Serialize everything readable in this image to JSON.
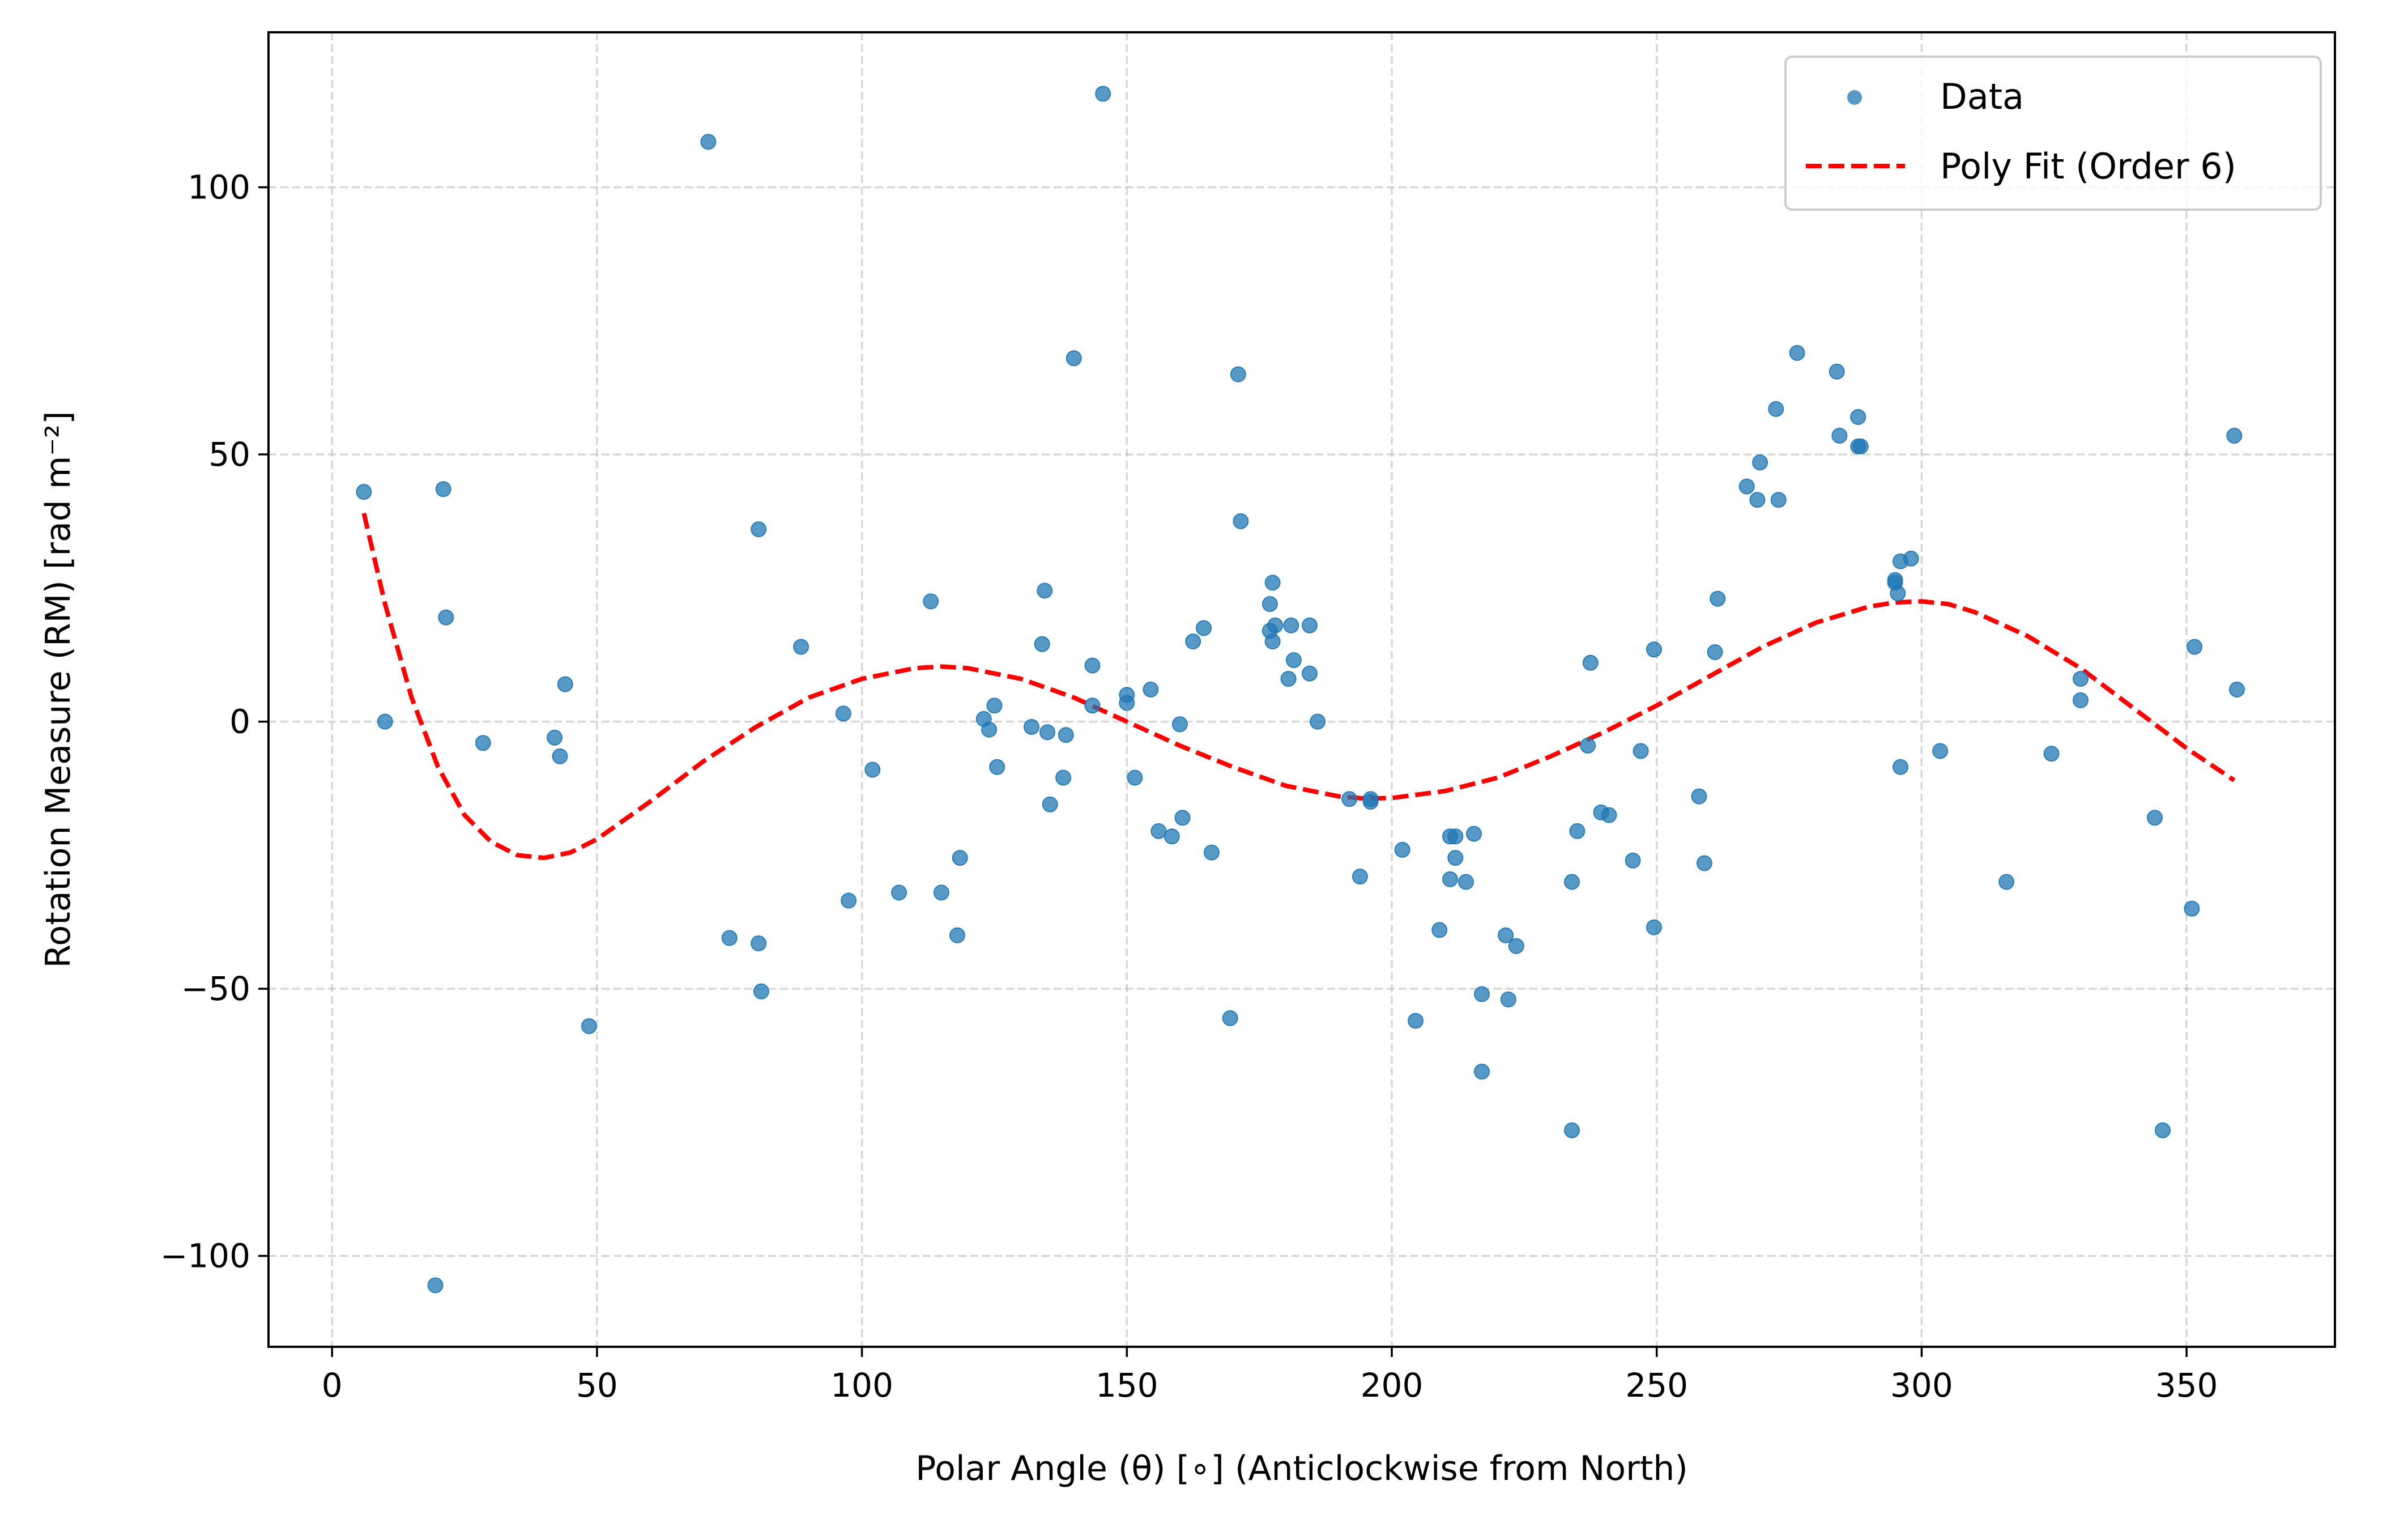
{
  "chart_data": {
    "type": "scatter",
    "title": "",
    "xlabel": "Polar Angle (θ) [∘] (Anticlockwise from North)",
    "ylabel": "Rotation Measure (RM) [rad m⁻²]",
    "xlim": [
      -12,
      378
    ],
    "ylim": [
      -117,
      129
    ],
    "xticks": [
      0,
      50,
      100,
      150,
      200,
      250,
      300,
      350
    ],
    "yticks": [
      -100,
      -50,
      0,
      50,
      100
    ],
    "ytick_labels": [
      "−100",
      "−50",
      "0",
      "50",
      "100"
    ],
    "grid": true,
    "legend_position": "top-right",
    "colors": {
      "data": "#1f77b4",
      "fit": "#ff0000"
    },
    "series": [
      {
        "name": "Data",
        "kind": "scatter",
        "points": [
          [
            6,
            43
          ],
          [
            10,
            0
          ],
          [
            19.5,
            -105.5
          ],
          [
            21,
            43.5
          ],
          [
            21.5,
            19.5
          ],
          [
            28.5,
            -4
          ],
          [
            42,
            -3
          ],
          [
            43,
            -6.5
          ],
          [
            44,
            7
          ],
          [
            48.5,
            -57
          ],
          [
            71,
            108.5
          ],
          [
            75,
            -40.5
          ],
          [
            80.5,
            36
          ],
          [
            80.5,
            -41.5
          ],
          [
            81,
            -50.5
          ],
          [
            88.5,
            14
          ],
          [
            96.5,
            1.5
          ],
          [
            97.5,
            -33.5
          ],
          [
            102,
            -9
          ],
          [
            107,
            -32
          ],
          [
            113,
            22.5
          ],
          [
            115,
            -32
          ],
          [
            118,
            -40
          ],
          [
            118.5,
            -25.5
          ],
          [
            123,
            0.5
          ],
          [
            124,
            -1.5
          ],
          [
            125,
            3
          ],
          [
            125.5,
            -8.5
          ],
          [
            132,
            -1
          ],
          [
            134,
            14.5
          ],
          [
            134.5,
            24.5
          ],
          [
            135,
            -2
          ],
          [
            135.5,
            -15.5
          ],
          [
            138,
            -10.5
          ],
          [
            138.5,
            -2.5
          ],
          [
            140,
            68
          ],
          [
            143.5,
            10.5
          ],
          [
            143.5,
            3
          ],
          [
            145.5,
            117.5
          ],
          [
            150,
            3.5
          ],
          [
            150,
            5
          ],
          [
            151.5,
            -10.5
          ],
          [
            154.5,
            6
          ],
          [
            156,
            -20.5
          ],
          [
            158.5,
            -21.5
          ],
          [
            160,
            -0.5
          ],
          [
            160.5,
            -18
          ],
          [
            162.5,
            15
          ],
          [
            164.5,
            17.5
          ],
          [
            166,
            -24.5
          ],
          [
            169.5,
            -55.5
          ],
          [
            171,
            65
          ],
          [
            171.5,
            37.5
          ],
          [
            177,
            17
          ],
          [
            177,
            22
          ],
          [
            177.5,
            26
          ],
          [
            177.5,
            15
          ],
          [
            178,
            18
          ],
          [
            180.5,
            8
          ],
          [
            181,
            18
          ],
          [
            181.5,
            11.5
          ],
          [
            184.5,
            18
          ],
          [
            184.5,
            9
          ],
          [
            186,
            0
          ],
          [
            192,
            -14.5
          ],
          [
            194,
            -29
          ],
          [
            196,
            -14.5
          ],
          [
            196,
            -15
          ],
          [
            202,
            -24
          ],
          [
            204.5,
            -56
          ],
          [
            209,
            -39
          ],
          [
            211,
            -21.5
          ],
          [
            211,
            -29.5
          ],
          [
            212,
            -25.5
          ],
          [
            212,
            -21.5
          ],
          [
            214,
            -30
          ],
          [
            215.5,
            -21
          ],
          [
            217,
            -51
          ],
          [
            217,
            -65.5
          ],
          [
            221.5,
            -40
          ],
          [
            222,
            -52
          ],
          [
            223.5,
            -42
          ],
          [
            234,
            -30
          ],
          [
            234,
            -76.5
          ],
          [
            235,
            -20.5
          ],
          [
            237,
            -4.5
          ],
          [
            237.5,
            11
          ],
          [
            239.5,
            -17
          ],
          [
            241,
            -17.5
          ],
          [
            245.5,
            -26
          ],
          [
            247,
            -5.5
          ],
          [
            249.5,
            -38.5
          ],
          [
            249.5,
            13.5
          ],
          [
            258,
            -14
          ],
          [
            259,
            -26.5
          ],
          [
            261,
            13
          ],
          [
            261.5,
            23
          ],
          [
            267,
            44
          ],
          [
            269,
            41.5
          ],
          [
            269.5,
            48.5
          ],
          [
            272.5,
            58.5
          ],
          [
            273,
            41.5
          ],
          [
            276.5,
            69
          ],
          [
            284,
            65.5
          ],
          [
            284.5,
            53.5
          ],
          [
            288,
            57
          ],
          [
            288,
            51.5
          ],
          [
            288.5,
            51.5
          ],
          [
            295,
            26
          ],
          [
            295,
            26.5
          ],
          [
            295.5,
            24
          ],
          [
            296,
            -8.5
          ],
          [
            296,
            30
          ],
          [
            298,
            30.5
          ],
          [
            303.5,
            -5.5
          ],
          [
            316,
            -30
          ],
          [
            324.5,
            -6
          ],
          [
            330,
            8
          ],
          [
            330,
            4
          ],
          [
            344,
            -18
          ],
          [
            345.5,
            -76.5
          ],
          [
            351,
            -35
          ],
          [
            351.5,
            14
          ],
          [
            359,
            53.5
          ],
          [
            359.5,
            6
          ]
        ]
      },
      {
        "name": "Poly Fit (Order 6)",
        "kind": "line",
        "style": "dashed",
        "points": [
          [
            6,
            39
          ],
          [
            10,
            22
          ],
          [
            15,
            4.5
          ],
          [
            20,
            -8.5
          ],
          [
            25,
            -17.5
          ],
          [
            30,
            -22.5
          ],
          [
            35,
            -25
          ],
          [
            40,
            -25.5
          ],
          [
            45,
            -24.5
          ],
          [
            50,
            -22
          ],
          [
            60,
            -15
          ],
          [
            70,
            -7.5
          ],
          [
            80,
            -1
          ],
          [
            90,
            4.5
          ],
          [
            100,
            8
          ],
          [
            110,
            10
          ],
          [
            115,
            10.3
          ],
          [
            120,
            10
          ],
          [
            130,
            8
          ],
          [
            140,
            4.5
          ],
          [
            150,
            0
          ],
          [
            160,
            -4.5
          ],
          [
            170,
            -8.5
          ],
          [
            180,
            -12
          ],
          [
            190,
            -14
          ],
          [
            195,
            -14.4
          ],
          [
            200,
            -14.3
          ],
          [
            210,
            -13
          ],
          [
            220,
            -10.5
          ],
          [
            230,
            -6.5
          ],
          [
            240,
            -2
          ],
          [
            250,
            3
          ],
          [
            260,
            8.5
          ],
          [
            270,
            14
          ],
          [
            280,
            18.5
          ],
          [
            290,
            21.5
          ],
          [
            295,
            22.3
          ],
          [
            300,
            22.5
          ],
          [
            305,
            22
          ],
          [
            310,
            20.5
          ],
          [
            320,
            16
          ],
          [
            330,
            10
          ],
          [
            340,
            2.5
          ],
          [
            350,
            -5
          ],
          [
            359,
            -11
          ]
        ]
      }
    ]
  }
}
